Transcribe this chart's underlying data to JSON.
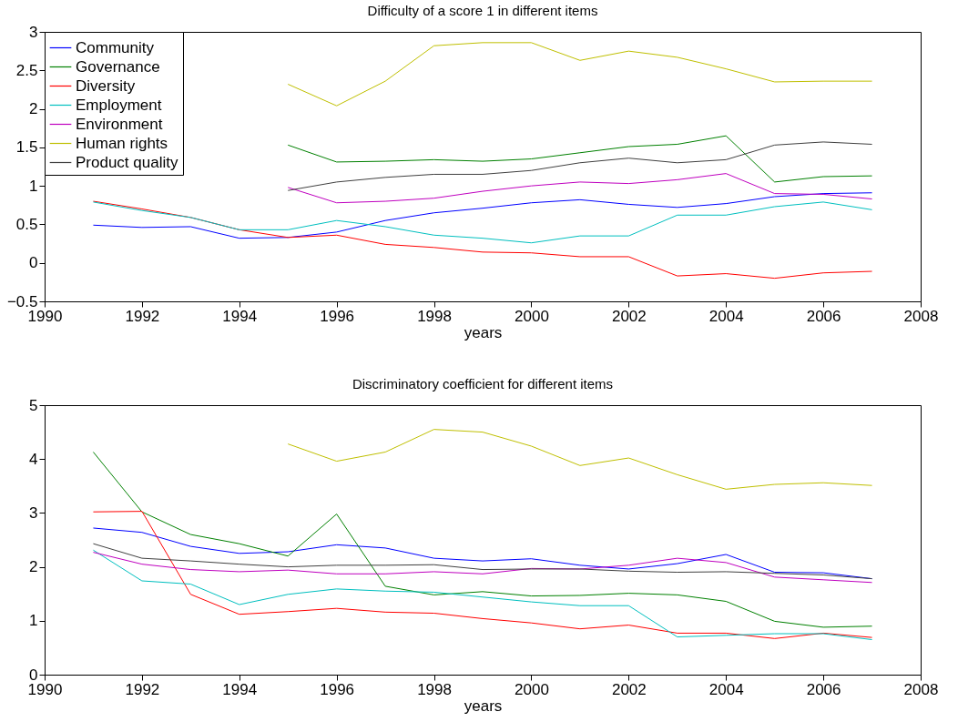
{
  "chart_data": [
    {
      "type": "line",
      "title": "Difficulty of a score 1 in different items",
      "xlabel": "years",
      "x": [
        1991,
        1992,
        1993,
        1994,
        1995,
        1996,
        1997,
        1998,
        1999,
        2000,
        2001,
        2002,
        2003,
        2004,
        2005,
        2006,
        2007
      ],
      "xlim": [
        1990,
        2008
      ],
      "xticks": [
        1990,
        1992,
        1994,
        1996,
        1998,
        2000,
        2002,
        2004,
        2006,
        2008
      ],
      "ylim": [
        -0.5,
        3
      ],
      "yticks": [
        -0.5,
        0,
        0.5,
        1,
        1.5,
        2,
        2.5,
        3
      ],
      "legend": "top left",
      "grid": false,
      "series": [
        {
          "name": "Community",
          "color": "#0000ff",
          "values": [
            0.49,
            0.46,
            0.47,
            0.32,
            0.33,
            0.4,
            0.55,
            0.65,
            0.71,
            0.78,
            0.82,
            0.76,
            0.72,
            0.77,
            0.86,
            0.9,
            0.91
          ]
        },
        {
          "name": "Governance",
          "color": "#008000",
          "values": [
            null,
            null,
            null,
            null,
            1.53,
            1.31,
            1.32,
            1.34,
            1.32,
            1.35,
            1.43,
            1.51,
            1.54,
            1.65,
            1.05,
            1.12,
            1.13
          ]
        },
        {
          "name": "Diversity",
          "color": "#ff0000",
          "values": [
            0.8,
            0.7,
            0.59,
            0.43,
            0.33,
            0.36,
            0.24,
            0.2,
            0.14,
            0.13,
            0.08,
            0.08,
            -0.17,
            -0.14,
            -0.2,
            -0.13,
            -0.11
          ]
        },
        {
          "name": "Employment",
          "color": "#00bfbf",
          "values": [
            0.79,
            0.68,
            0.59,
            0.43,
            0.43,
            0.55,
            0.47,
            0.36,
            0.32,
            0.26,
            0.35,
            0.35,
            0.62,
            0.62,
            0.73,
            0.79,
            0.69
          ]
        },
        {
          "name": "Environment",
          "color": "#bf00bf",
          "values": [
            null,
            null,
            null,
            null,
            0.98,
            0.78,
            0.8,
            0.84,
            0.93,
            1.0,
            1.05,
            1.03,
            1.08,
            1.16,
            0.9,
            0.89,
            0.83
          ]
        },
        {
          "name": "Human rights",
          "color": "#bfbf00",
          "values": [
            null,
            null,
            null,
            null,
            2.32,
            2.04,
            2.36,
            2.82,
            2.86,
            2.86,
            2.63,
            2.75,
            2.67,
            2.52,
            2.35,
            2.36,
            2.36
          ]
        },
        {
          "name": "Product quality",
          "color": "#404040",
          "values": [
            null,
            null,
            null,
            null,
            0.94,
            1.05,
            1.11,
            1.15,
            1.15,
            1.2,
            1.3,
            1.36,
            1.3,
            1.34,
            1.53,
            1.57,
            1.54
          ]
        }
      ]
    },
    {
      "type": "line",
      "title": "Discriminatory coefficient for different items",
      "xlabel": "years",
      "x": [
        1991,
        1992,
        1993,
        1994,
        1995,
        1996,
        1997,
        1998,
        1999,
        2000,
        2001,
        2002,
        2003,
        2004,
        2005,
        2006,
        2007
      ],
      "xlim": [
        1990,
        2008
      ],
      "xticks": [
        1990,
        1992,
        1994,
        1996,
        1998,
        2000,
        2002,
        2004,
        2006,
        2008
      ],
      "ylim": [
        0,
        5
      ],
      "yticks": [
        0,
        1,
        2,
        3,
        4,
        5
      ],
      "grid": false,
      "series": [
        {
          "color": "#0000ff",
          "values": [
            2.72,
            2.64,
            2.38,
            2.25,
            2.28,
            2.41,
            2.35,
            2.16,
            2.11,
            2.15,
            2.03,
            1.96,
            2.06,
            2.23,
            1.9,
            1.89,
            1.78
          ]
        },
        {
          "color": "#008000",
          "values": [
            4.13,
            3.02,
            2.6,
            2.43,
            2.2,
            2.98,
            1.64,
            1.48,
            1.54,
            1.46,
            1.47,
            1.51,
            1.48,
            1.36,
            0.99,
            0.88,
            0.9
          ]
        },
        {
          "color": "#ff0000",
          "values": [
            3.02,
            3.03,
            1.49,
            1.12,
            1.17,
            1.23,
            1.16,
            1.14,
            1.04,
            0.96,
            0.85,
            0.92,
            0.77,
            0.77,
            0.67,
            0.77,
            0.69
          ]
        },
        {
          "color": "#00bfbf",
          "values": [
            2.31,
            1.74,
            1.68,
            1.3,
            1.49,
            1.59,
            1.55,
            1.53,
            1.44,
            1.35,
            1.28,
            1.28,
            0.7,
            0.73,
            0.76,
            0.76,
            0.65
          ]
        },
        {
          "color": "#bf00bf",
          "values": [
            2.27,
            2.05,
            1.95,
            1.91,
            1.94,
            1.87,
            1.87,
            1.91,
            1.87,
            1.97,
            1.96,
            2.03,
            2.16,
            2.08,
            1.81,
            1.76,
            1.71
          ]
        },
        {
          "color": "#bfbf00",
          "values": [
            null,
            null,
            null,
            null,
            4.28,
            3.96,
            4.13,
            4.55,
            4.5,
            4.24,
            3.88,
            4.02,
            3.71,
            3.44,
            3.53,
            3.56,
            3.51
          ]
        },
        {
          "color": "#404040",
          "values": [
            2.43,
            2.16,
            2.11,
            2.05,
            2.0,
            2.03,
            2.03,
            2.04,
            1.95,
            1.96,
            1.96,
            1.92,
            1.9,
            1.91,
            1.88,
            1.85,
            1.78
          ]
        }
      ]
    }
  ]
}
